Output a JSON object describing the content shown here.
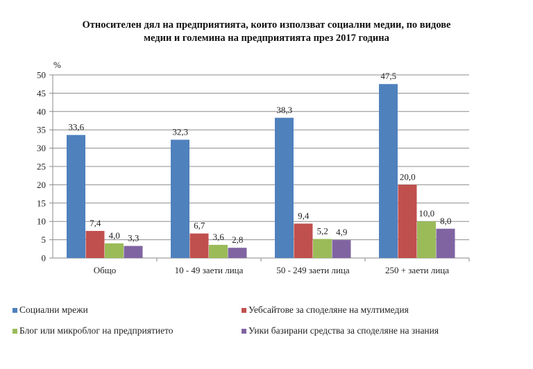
{
  "chart_data": {
    "type": "bar",
    "title_line1": "Относителен дял на предприятията, които използват социални медии, по видове",
    "title_line2": "медии и големина на предприятията през 2017 година",
    "ylabel": "%",
    "ylim": [
      0,
      50
    ],
    "yticks": [
      0,
      5,
      10,
      15,
      20,
      25,
      30,
      35,
      40,
      45,
      50
    ],
    "grid": true,
    "legend_position": "bottom",
    "categories": [
      "Общо",
      "10 - 49 заети лица",
      "50 - 249 заети лица",
      "250 + заети лица"
    ],
    "series": [
      {
        "name": "Социални мрежи",
        "color": "#4F81BD",
        "values": [
          33.6,
          32.3,
          38.3,
          47.5
        ],
        "labels": [
          "33,6",
          "32,3",
          "38,3",
          "47,5"
        ]
      },
      {
        "name": "Уебсайтове за споделяне на мултимедия",
        "color": "#C0504D",
        "values": [
          7.4,
          6.7,
          9.4,
          20.0
        ],
        "labels": [
          "7,4",
          "6,7",
          "9,4",
          "20,0"
        ]
      },
      {
        "name": "Блог или микроблог на предприятието",
        "color": "#9BBB59",
        "values": [
          4.0,
          3.6,
          5.2,
          10.0
        ],
        "labels": [
          "4,0",
          "3,6",
          "5,2",
          "10,0"
        ]
      },
      {
        "name": "Уики базирани средства за споделяне на знания",
        "color": "#8064A2",
        "values": [
          3.3,
          2.8,
          4.9,
          8.0
        ],
        "labels": [
          "3,3",
          "2,8",
          "4,9",
          "8,0"
        ]
      }
    ]
  }
}
